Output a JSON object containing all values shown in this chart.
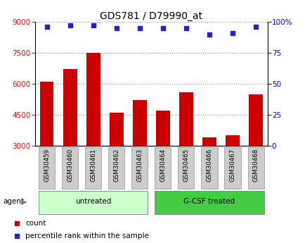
{
  "title": "GDS781 / D79990_at",
  "categories": [
    "GSM30459",
    "GSM30460",
    "GSM30461",
    "GSM30462",
    "GSM30463",
    "GSM30464",
    "GSM30465",
    "GSM30466",
    "GSM30467",
    "GSM30468"
  ],
  "counts": [
    6100,
    6700,
    7500,
    4600,
    5200,
    4700,
    5600,
    3400,
    3500,
    5500
  ],
  "percentiles": [
    96,
    97,
    97,
    95,
    95,
    95,
    95,
    90,
    91,
    96
  ],
  "bar_color": "#cc0000",
  "dot_color": "#2222cc",
  "ylim_left": [
    3000,
    9000
  ],
  "ylim_right": [
    0,
    100
  ],
  "yticks_left": [
    3000,
    4500,
    6000,
    7500,
    9000
  ],
  "yticks_right": [
    0,
    25,
    50,
    75,
    100
  ],
  "ytick_labels_right": [
    "0",
    "25",
    "50",
    "75",
    "100%"
  ],
  "groups": [
    {
      "label": "untreated",
      "start": 0,
      "end": 4,
      "color": "#ccffcc"
    },
    {
      "label": "G-CSF treated",
      "start": 5,
      "end": 9,
      "color": "#44cc44"
    }
  ],
  "group_header": "agent",
  "legend_count_label": "count",
  "legend_percentile_label": "percentile rank within the sample",
  "bar_width": 0.6,
  "tick_box_color": "#cccccc",
  "tick_box_edge": "#aaaaaa"
}
